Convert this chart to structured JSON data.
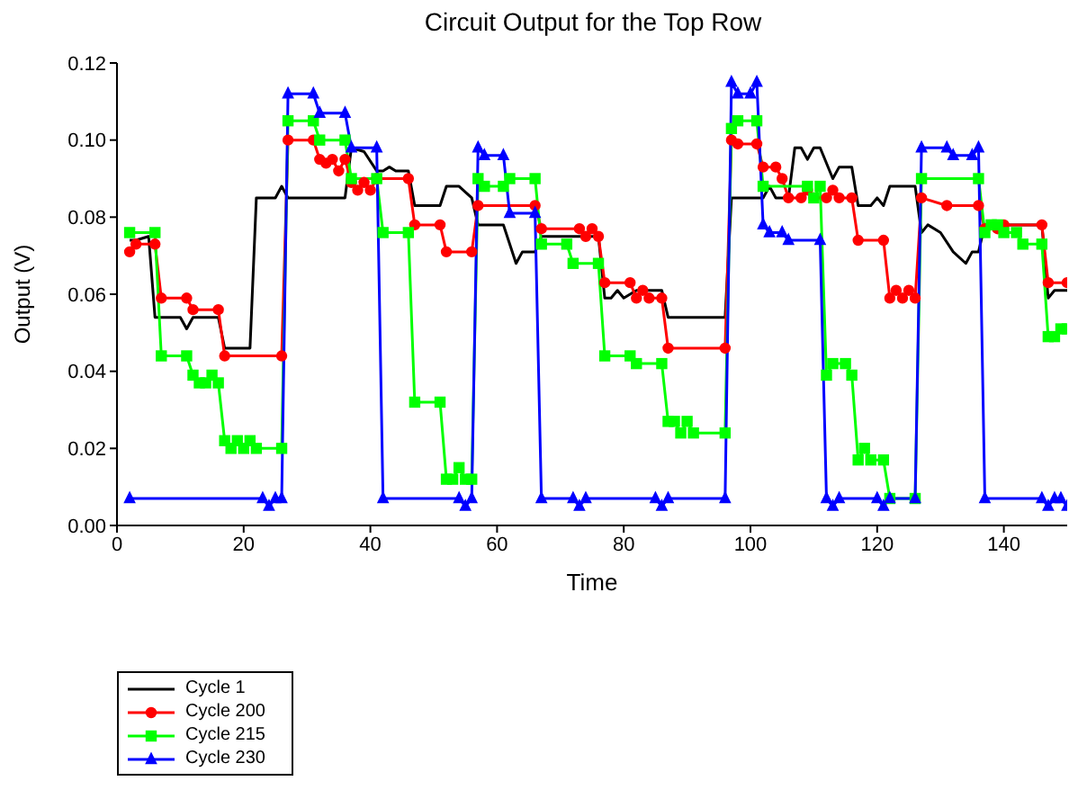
{
  "chart_data": {
    "type": "line",
    "title": "Circuit Output for the Top Row",
    "xlabel": "Time",
    "ylabel": "Output (V)",
    "xlim": [
      0,
      150
    ],
    "xticks": [
      0,
      20,
      40,
      60,
      80,
      100,
      120,
      140
    ],
    "ylim": [
      0,
      0.12
    ],
    "yticks": [
      {
        "value": 0,
        "label": "0.00"
      },
      {
        "value": 0.02,
        "label": "0.02"
      },
      {
        "value": 0.04,
        "label": "0.04"
      },
      {
        "value": 0.06,
        "label": "0.06"
      },
      {
        "value": 0.08,
        "label": "0.08"
      },
      {
        "value": 0.1,
        "label": "0.10"
      },
      {
        "value": 0.12,
        "label": "0.12"
      }
    ],
    "legend": "bottom left",
    "line_style": "solid",
    "series": [
      {
        "name": "Cycle 1",
        "color": "#000000",
        "marker": "none",
        "x": [
          2,
          3,
          5,
          6,
          10,
          11,
          12,
          16,
          17,
          21,
          22,
          25,
          26,
          27,
          36,
          37,
          39,
          41,
          42,
          43,
          44,
          46,
          47,
          51,
          52,
          54,
          56,
          57,
          61,
          63,
          64,
          66,
          67,
          76,
          77,
          78,
          79,
          80,
          82,
          86,
          87,
          96,
          97,
          102,
          103,
          104,
          106,
          107,
          108,
          109,
          110,
          111,
          113,
          114,
          116,
          117,
          119,
          120,
          121,
          122,
          126,
          127,
          128,
          130,
          132,
          134,
          135,
          136,
          137,
          146,
          147,
          148,
          150
        ],
        "values": [
          0.074,
          0.074,
          0.075,
          0.054,
          0.054,
          0.051,
          0.054,
          0.054,
          0.046,
          0.046,
          0.085,
          0.085,
          0.088,
          0.085,
          0.085,
          0.098,
          0.097,
          0.092,
          0.092,
          0.093,
          0.092,
          0.092,
          0.083,
          0.083,
          0.088,
          0.088,
          0.085,
          0.078,
          0.078,
          0.068,
          0.071,
          0.071,
          0.075,
          0.075,
          0.059,
          0.059,
          0.061,
          0.059,
          0.061,
          0.061,
          0.054,
          0.054,
          0.085,
          0.085,
          0.088,
          0.085,
          0.085,
          0.098,
          0.098,
          0.095,
          0.098,
          0.098,
          0.09,
          0.093,
          0.093,
          0.083,
          0.083,
          0.085,
          0.083,
          0.088,
          0.088,
          0.076,
          0.078,
          0.076,
          0.071,
          0.068,
          0.071,
          0.071,
          0.078,
          0.078,
          0.059,
          0.061,
          0.061
        ]
      },
      {
        "name": "Cycle 200",
        "color": "#ff0000",
        "marker": "circle",
        "x": [
          2,
          3,
          6,
          7,
          11,
          12,
          16,
          17,
          26,
          27,
          31,
          32,
          33,
          34,
          35,
          36,
          37,
          38,
          39,
          40,
          41,
          46,
          47,
          51,
          52,
          56,
          57,
          66,
          67,
          73,
          74,
          75,
          76,
          77,
          81,
          82,
          83,
          84,
          86,
          87,
          96,
          97,
          98,
          101,
          102,
          104,
          105,
          106,
          108,
          109,
          110,
          112,
          113,
          114,
          116,
          117,
          121,
          122,
          123,
          124,
          125,
          126,
          127,
          131,
          136,
          137,
          139,
          140,
          146,
          147,
          150
        ],
        "values": [
          0.071,
          0.073,
          0.073,
          0.059,
          0.059,
          0.056,
          0.056,
          0.044,
          0.044,
          0.1,
          0.1,
          0.095,
          0.094,
          0.095,
          0.092,
          0.095,
          0.089,
          0.087,
          0.089,
          0.087,
          0.09,
          0.09,
          0.078,
          0.078,
          0.071,
          0.071,
          0.083,
          0.083,
          0.077,
          0.077,
          0.075,
          0.077,
          0.075,
          0.063,
          0.063,
          0.059,
          0.061,
          0.059,
          0.059,
          0.046,
          0.046,
          0.1,
          0.099,
          0.099,
          0.093,
          0.093,
          0.09,
          0.085,
          0.085,
          0.087,
          0.085,
          0.085,
          0.087,
          0.085,
          0.085,
          0.074,
          0.074,
          0.059,
          0.061,
          0.059,
          0.061,
          0.059,
          0.085,
          0.083,
          0.083,
          0.077,
          0.077,
          0.078,
          0.078,
          0.063,
          0.063
        ]
      },
      {
        "name": "Cycle 215",
        "color": "#00ff00",
        "marker": "square",
        "x": [
          2,
          6,
          7,
          11,
          12,
          13,
          14,
          15,
          16,
          17,
          18,
          19,
          20,
          21,
          22,
          26,
          27,
          31,
          32,
          36,
          37,
          41,
          42,
          46,
          47,
          51,
          52,
          53,
          54,
          55,
          56,
          57,
          58,
          61,
          62,
          66,
          67,
          71,
          72,
          76,
          77,
          81,
          82,
          86,
          87,
          88,
          89,
          90,
          91,
          96,
          97,
          98,
          101,
          102,
          109,
          110,
          111,
          112,
          113,
          115,
          116,
          117,
          118,
          119,
          121,
          122,
          126,
          127,
          136,
          137,
          138,
          139,
          140,
          142,
          143,
          146,
          147,
          148,
          149,
          150
        ],
        "values": [
          0.076,
          0.076,
          0.044,
          0.044,
          0.039,
          0.037,
          0.037,
          0.039,
          0.037,
          0.022,
          0.02,
          0.022,
          0.02,
          0.022,
          0.02,
          0.02,
          0.105,
          0.105,
          0.1,
          0.1,
          0.09,
          0.09,
          0.076,
          0.076,
          0.032,
          0.032,
          0.012,
          0.012,
          0.015,
          0.012,
          0.012,
          0.09,
          0.088,
          0.088,
          0.09,
          0.09,
          0.073,
          0.073,
          0.068,
          0.068,
          0.044,
          0.044,
          0.042,
          0.042,
          0.027,
          0.027,
          0.024,
          0.027,
          0.024,
          0.024,
          0.103,
          0.105,
          0.105,
          0.088,
          0.088,
          0.085,
          0.088,
          0.039,
          0.042,
          0.042,
          0.039,
          0.017,
          0.02,
          0.017,
          0.017,
          0.007,
          0.007,
          0.09,
          0.09,
          0.076,
          0.078,
          0.078,
          0.076,
          0.076,
          0.073,
          0.073,
          0.049,
          0.049,
          0.051,
          0.051
        ]
      },
      {
        "name": "Cycle 230",
        "color": "#0000ff",
        "marker": "triangle",
        "x": [
          2,
          23,
          24,
          25,
          26,
          27,
          31,
          32,
          36,
          37,
          41,
          42,
          54,
          55,
          56,
          57,
          58,
          61,
          62,
          66,
          67,
          72,
          73,
          74,
          85,
          86,
          87,
          96,
          97,
          98,
          100,
          101,
          102,
          103,
          105,
          106,
          111,
          112,
          113,
          114,
          120,
          121,
          122,
          126,
          127,
          131,
          132,
          135,
          136,
          137,
          146,
          147,
          148,
          149,
          150
        ],
        "values": [
          0.007,
          0.007,
          0.005,
          0.007,
          0.007,
          0.112,
          0.112,
          0.107,
          0.107,
          0.098,
          0.098,
          0.007,
          0.007,
          0.005,
          0.007,
          0.098,
          0.096,
          0.096,
          0.081,
          0.081,
          0.007,
          0.007,
          0.005,
          0.007,
          0.007,
          0.005,
          0.007,
          0.007,
          0.115,
          0.112,
          0.112,
          0.115,
          0.078,
          0.076,
          0.076,
          0.074,
          0.074,
          0.007,
          0.005,
          0.007,
          0.007,
          0.005,
          0.007,
          0.007,
          0.098,
          0.098,
          0.096,
          0.096,
          0.098,
          0.007,
          0.007,
          0.005,
          0.007,
          0.007,
          0.005
        ]
      }
    ]
  }
}
